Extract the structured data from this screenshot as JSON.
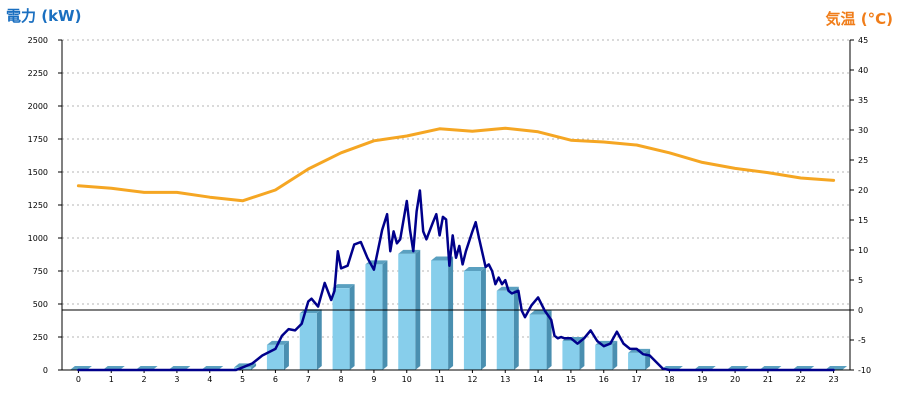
{
  "chart_data": {
    "type": "bar",
    "title": "",
    "ylabel_left": "電力 (kW)",
    "ylabel_right": "気温 (°C)",
    "xlabel": "",
    "categories": [
      "0",
      "1",
      "2",
      "3",
      "4",
      "5",
      "6",
      "7",
      "8",
      "9",
      "10",
      "11",
      "12",
      "13",
      "14",
      "15",
      "16",
      "17",
      "18",
      "19",
      "20",
      "21",
      "22",
      "23"
    ],
    "ylim_left": [
      0,
      2500
    ],
    "yticks_left": [
      0,
      250,
      500,
      750,
      1000,
      1250,
      1500,
      1750,
      2000,
      2250,
      2500
    ],
    "ylim_right": [
      -10,
      45
    ],
    "yticks_right": [
      -10,
      -5,
      0,
      5,
      10,
      15,
      20,
      25,
      30,
      35,
      40,
      45
    ],
    "zero_line_right": 0,
    "grid": "horizontal dotted",
    "series": [
      {
        "kind": "bar",
        "axis": "left",
        "color": "#87ceeb",
        "values": [
          0,
          0,
          0,
          0,
          0,
          20,
          190,
          430,
          620,
          800,
          880,
          830,
          750,
          600,
          420,
          220,
          190,
          130,
          0,
          0,
          0,
          0,
          0,
          0
        ]
      },
      {
        "kind": "line",
        "axis": "left",
        "color": "#00008b",
        "x": [
          0,
          1,
          2,
          3,
          4,
          4.8,
          5,
          5.3,
          5.6,
          6,
          6.2,
          6.4,
          6.6,
          6.8,
          7,
          7.1,
          7.3,
          7.5,
          7.7,
          7.8,
          7.9,
          8,
          8.2,
          8.4,
          8.6,
          8.8,
          9,
          9.2,
          9.25,
          9.4,
          9.5,
          9.6,
          9.7,
          9.8,
          10,
          10.1,
          10.2,
          10.3,
          10.4,
          10.5,
          10.6,
          10.8,
          10.9,
          11,
          11.1,
          11.2,
          11.3,
          11.4,
          11.5,
          11.6,
          11.7,
          11.8,
          12,
          12.1,
          12.2,
          12.4,
          12.5,
          12.6,
          12.7,
          12.8,
          12.9,
          13,
          13.1,
          13.2,
          13.4,
          13.5,
          13.6,
          13.8,
          14,
          14.2,
          14.4,
          14.5,
          14.6,
          14.7,
          14.8,
          15,
          15.2,
          15.4,
          15.6,
          15.8,
          16,
          16.2,
          16.4,
          16.6,
          16.8,
          17,
          17.2,
          17.4,
          17.6,
          17.8,
          18,
          19,
          20,
          21,
          22,
          23
        ],
        "values": [
          0,
          0,
          0,
          0,
          0,
          0,
          20,
          50,
          110,
          160,
          260,
          310,
          300,
          350,
          520,
          540,
          480,
          660,
          530,
          600,
          900,
          770,
          790,
          950,
          970,
          850,
          760,
          1000,
          1060,
          1180,
          900,
          1050,
          960,
          990,
          1280,
          1060,
          900,
          1200,
          1360,
          1050,
          990,
          1120,
          1180,
          1020,
          1160,
          1140,
          790,
          1020,
          850,
          940,
          800,
          900,
          1050,
          1120,
          1000,
          780,
          800,
          750,
          650,
          700,
          650,
          680,
          600,
          580,
          600,
          450,
          400,
          490,
          550,
          450,
          380,
          260,
          240,
          250,
          240,
          240,
          200,
          240,
          300,
          220,
          180,
          200,
          290,
          200,
          160,
          160,
          120,
          110,
          60,
          10,
          0,
          0,
          0,
          0,
          0,
          0
        ]
      },
      {
        "kind": "line",
        "axis": "right",
        "color": "#f5a623",
        "values": [
          20.7,
          20.3,
          19.6,
          19.6,
          18.8,
          18.2,
          20.0,
          23.5,
          26.2,
          28.2,
          29.0,
          30.2,
          29.8,
          30.3,
          29.7,
          28.3,
          28.0,
          27.5,
          26.2,
          24.6,
          23.6,
          22.9,
          22.0,
          21.6
        ]
      }
    ]
  }
}
